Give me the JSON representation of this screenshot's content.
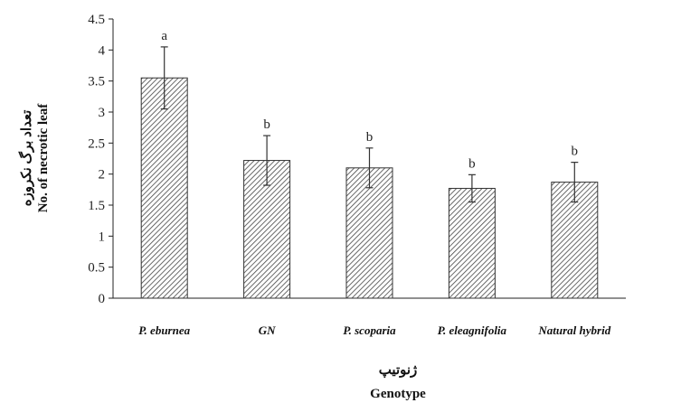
{
  "chart_data": {
    "type": "bar",
    "categories": [
      "P. eburnea",
      "GN",
      "P. scoparia",
      "P. eleagnifolia",
      "Natural hybrid"
    ],
    "values": [
      3.55,
      2.22,
      2.1,
      1.77,
      1.87
    ],
    "error": [
      0.5,
      0.4,
      0.32,
      0.22,
      0.32
    ],
    "significance": [
      "a",
      "b",
      "b",
      "b",
      "b"
    ],
    "yticks": [
      "0",
      "0.5",
      "1",
      "1.5",
      "2",
      "2.5",
      "3",
      "3.5",
      "4",
      "4.5"
    ],
    "ylim": [
      0,
      4.5
    ],
    "ylabel_fa": "تعداد برگ نکروزه",
    "ylabel": "No. of necrotic leaf",
    "xlabel_fa": "ژنوتیپ",
    "xlabel": "Genotype",
    "bar_pattern": "diagonal-hatch",
    "colors": {
      "bar_fill": "#ffffff",
      "hatch": "#444444",
      "axis": "#222222"
    }
  }
}
